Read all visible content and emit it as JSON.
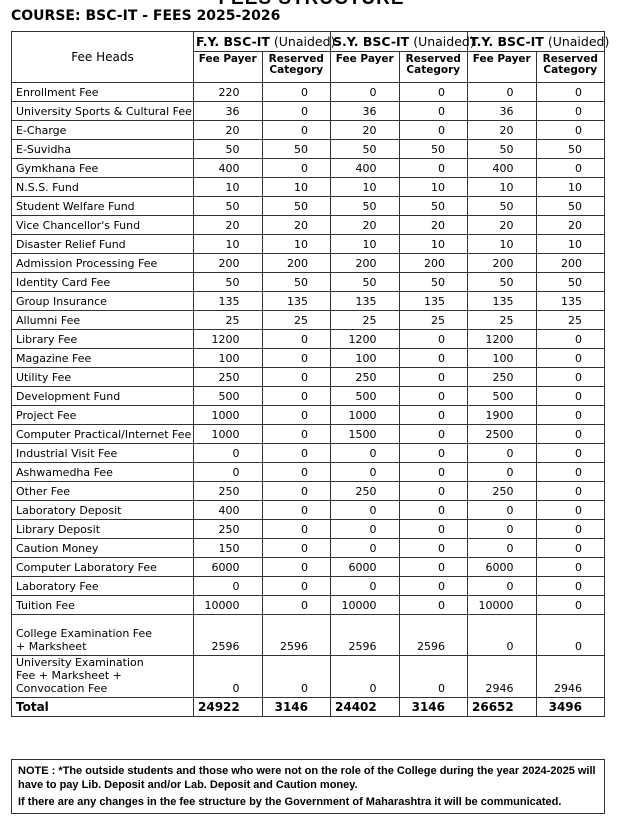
{
  "doc_title": "FEES STRUCTURE",
  "course": "COURSE: BSC-IT - FEES 2025-2026",
  "header": {
    "fee_heads": "Fee Heads",
    "years": [
      {
        "name": "F.Y. BSC-IT",
        "type": "(Unaided)"
      },
      {
        "name": "S.Y. BSC-IT",
        "type": "(Unaided)"
      },
      {
        "name": "T.Y. BSC-IT",
        "type": "(Unaided)"
      }
    ],
    "fee_payer": "Fee Payer",
    "reserved": "Reserved Category"
  },
  "rows": [
    {
      "label": "Enrollment Fee",
      "values": [
        "220",
        "0",
        "0",
        "0",
        "0",
        "0"
      ]
    },
    {
      "label": "University Sports & Cultural Fee",
      "values": [
        "36",
        "0",
        "36",
        "0",
        "36",
        "0"
      ]
    },
    {
      "label": "E-Charge",
      "values": [
        "20",
        "0",
        "20",
        "0",
        "20",
        "0"
      ]
    },
    {
      "label": "E-Suvidha",
      "values": [
        "50",
        "50",
        "50",
        "50",
        "50",
        "50"
      ]
    },
    {
      "label": "Gymkhana Fee",
      "values": [
        "400",
        "0",
        "400",
        "0",
        "400",
        "0"
      ]
    },
    {
      "label": "N.S.S. Fund",
      "values": [
        "10",
        "10",
        "10",
        "10",
        "10",
        "10"
      ]
    },
    {
      "label": "Student Welfare Fund",
      "values": [
        "50",
        "50",
        "50",
        "50",
        "50",
        "50"
      ]
    },
    {
      "label": "Vice Chancellor's Fund",
      "values": [
        "20",
        "20",
        "20",
        "20",
        "20",
        "20"
      ]
    },
    {
      "label": "Disaster Relief Fund",
      "values": [
        "10",
        "10",
        "10",
        "10",
        "10",
        "10"
      ]
    },
    {
      "label": "Admission Processing Fee",
      "values": [
        "200",
        "200",
        "200",
        "200",
        "200",
        "200"
      ]
    },
    {
      "label": "Identity Card Fee",
      "values": [
        "50",
        "50",
        "50",
        "50",
        "50",
        "50"
      ]
    },
    {
      "label": "Group Insurance",
      "values": [
        "135",
        "135",
        "135",
        "135",
        "135",
        "135"
      ]
    },
    {
      "label": "Allumni Fee",
      "values": [
        "25",
        "25",
        "25",
        "25",
        "25",
        "25"
      ]
    },
    {
      "label": "Library Fee",
      "values": [
        "1200",
        "0",
        "1200",
        "0",
        "1200",
        "0"
      ]
    },
    {
      "label": "Magazine Fee",
      "values": [
        "100",
        "0",
        "100",
        "0",
        "100",
        "0"
      ]
    },
    {
      "label": "Utility Fee",
      "values": [
        "250",
        "0",
        "250",
        "0",
        "250",
        "0"
      ]
    },
    {
      "label": "Development Fund",
      "values": [
        "500",
        "0",
        "500",
        "0",
        "500",
        "0"
      ]
    },
    {
      "label": "Project Fee",
      "values": [
        "1000",
        "0",
        "1000",
        "0",
        "1900",
        "0"
      ]
    },
    {
      "label": "Computer Practical/Internet Fee",
      "values": [
        "1000",
        "0",
        "1500",
        "0",
        "2500",
        "0"
      ]
    },
    {
      "label": "Industrial Visit Fee",
      "values": [
        "0",
        "0",
        "0",
        "0",
        "0",
        "0"
      ]
    },
    {
      "label": "Ashwamedha Fee",
      "values": [
        "0",
        "0",
        "0",
        "0",
        "0",
        "0"
      ]
    },
    {
      "label": "Other Fee",
      "values": [
        "250",
        "0",
        "250",
        "0",
        "250",
        "0"
      ]
    },
    {
      "label": "Laboratory Deposit",
      "values": [
        "400",
        "0",
        "0",
        "0",
        "0",
        "0"
      ]
    },
    {
      "label": "Library Deposit",
      "values": [
        "250",
        "0",
        "0",
        "0",
        "0",
        "0"
      ]
    },
    {
      "label": "Caution Money",
      "values": [
        "150",
        "0",
        "0",
        "0",
        "0",
        "0"
      ]
    },
    {
      "label": "Computer Laboratory Fee",
      "values": [
        "6000",
        "0",
        "6000",
        "0",
        "6000",
        "0"
      ]
    },
    {
      "label": "Laboratory Fee",
      "values": [
        "0",
        "0",
        "0",
        "0",
        "0",
        "0"
      ]
    },
    {
      "label": "Tuition Fee",
      "values": [
        "10000",
        "0",
        "10000",
        "0",
        "10000",
        "0"
      ]
    },
    {
      "label": "College Examination Fee + Marksheet",
      "values": [
        "2596",
        "2596",
        "2596",
        "2596",
        "0",
        "0"
      ],
      "tall": true
    },
    {
      "label": "University Examination Fee + Marksheet + Convocation Fee",
      "values": [
        "0",
        "0",
        "0",
        "0",
        "2946",
        "2946"
      ],
      "tall": true
    }
  ],
  "total": {
    "label": "Total",
    "values": [
      "24922",
      "3146",
      "24402",
      "3146",
      "26652",
      "3496"
    ]
  },
  "note": {
    "line1": "NOTE : *The outside students and those who were not on the role of the College during the year 2024-2025 will have to pay Lib. Deposit and/or Lab. Deposit and Caution money.",
    "line2": "If there are any changes in the fee structure by the Government of Maharashtra it will be communicated."
  }
}
